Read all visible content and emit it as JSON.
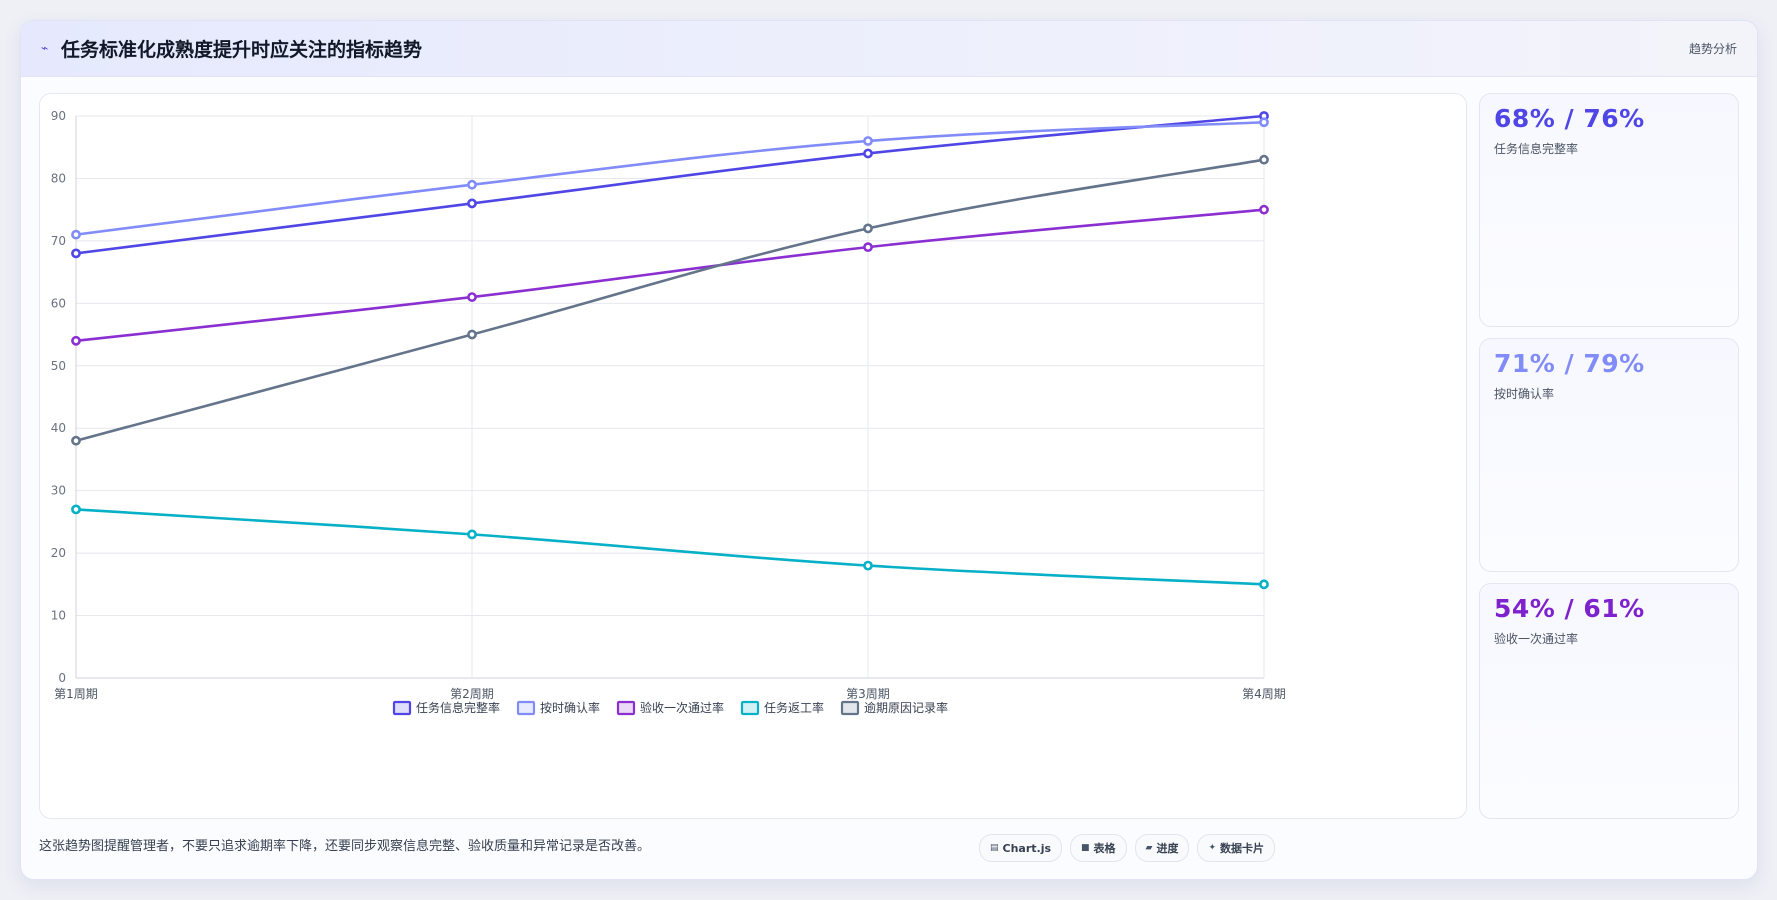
{
  "header": {
    "icon": "trend-icon",
    "title": "任务标准化成熟度提升时应关注的指标趋势",
    "tag": "趋势分析"
  },
  "stats": [
    {
      "value": "68% / 76%",
      "label": "任务信息完整率",
      "color": "#4f46e5"
    },
    {
      "value": "71% / 79%",
      "label": "按时确认率",
      "color": "#818cf8"
    },
    {
      "value": "54% / 61%",
      "label": "验收一次通过率",
      "color": "#7e22ce"
    }
  ],
  "footer": {
    "note": "这张趋势图提醒管理者，不要只追求逾期率下降，还要同步观察信息完整、验收质量和异常记录是否改善。",
    "pills": [
      {
        "icon": "chart-icon",
        "glyph": "▤",
        "label": "Chart.js"
      },
      {
        "icon": "table-icon",
        "glyph": "■",
        "label": "表格"
      },
      {
        "icon": "progress-icon",
        "glyph": "▰",
        "label": "进度"
      },
      {
        "icon": "sparkle-icon",
        "glyph": "✦",
        "label": "数据卡片"
      }
    ]
  },
  "chart_data": {
    "type": "line",
    "categories": [
      "第1周期",
      "第2周期",
      "第3周期",
      "第4周期"
    ],
    "ylim": [
      0,
      90
    ],
    "yticks": [
      0,
      10,
      20,
      30,
      40,
      50,
      60,
      70,
      80,
      90
    ],
    "grid": true,
    "legend_position": "bottom",
    "series": [
      {
        "name": "任务信息完整率",
        "color": "#4f46e5",
        "values": [
          68,
          76,
          84,
          90
        ]
      },
      {
        "name": "按时确认率",
        "color": "#818cf8",
        "values": [
          71,
          79,
          86,
          89
        ]
      },
      {
        "name": "验收一次通过率",
        "color": "#8b2fd1",
        "values": [
          54,
          61,
          69,
          75
        ]
      },
      {
        "name": "任务返工率",
        "color": "#06b0c6",
        "values": [
          27,
          23,
          18,
          15
        ]
      },
      {
        "name": "逾期原因记录率",
        "color": "#64748b",
        "values": [
          38,
          55,
          72,
          83
        ]
      }
    ]
  }
}
